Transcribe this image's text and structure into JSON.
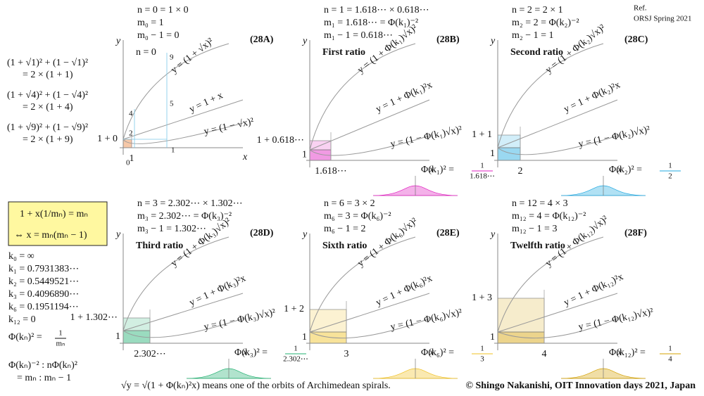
{
  "ref": [
    "Ref.",
    "ORSJ Spring  2021"
  ],
  "panels": [
    {
      "id": "(28A)",
      "color": "#e89a30",
      "header": [
        "n = 0 = 1 × 0",
        "m₀ = 1",
        "m₀ − 1 = 0"
      ],
      "ratio": "n = 0",
      "curves": [
        "y = (1 + √x)²",
        "y = 1 + x",
        "y = (1 − √x)²"
      ],
      "axis_y": "y",
      "axis_x": "x",
      "y_value": "1 + 0",
      "x_value": "1",
      "grid_labels": [
        "0",
        "1",
        "2",
        "4",
        "5",
        "9"
      ]
    },
    {
      "id": "(28B)",
      "color": "#e020c0",
      "header": [
        "n = 1 = 1.618⋯ × 0.618⋯",
        "m₁ = 1.618⋯ = Φ(k₁)⁻²",
        "m₁ − 1 = 0.618⋯"
      ],
      "ratio": "First ratio",
      "curves": [
        "y = (1 + Φ(k₁)√x)²",
        "y = 1 + Φ(k₁)²x",
        "y = (1 − Φ(k₁)√x)²"
      ],
      "axis_y": "y",
      "axis_x": "x",
      "y_value": "1 + 0.618⋯",
      "one": "1",
      "x_value": "1.618⋯",
      "phi": [
        "Φ(k₁)² =",
        "1",
        "1.618⋯"
      ]
    },
    {
      "id": "(28C)",
      "color": "#20a8e0",
      "header": [
        "n = 2 = 2 × 1",
        "m₂ = 2 = Φ(k₂)⁻²",
        "m₂ − 1 = 1"
      ],
      "ratio": "Second ratio",
      "curves": [
        "y = (1 + Φ(k₂)√x)²",
        "y = 1 + Φ(k₂)²x",
        "y = (1 − Φ(k₂)√x)²"
      ],
      "axis_y": "y",
      "axis_x": "x",
      "y_value": "1 + 1",
      "one": "1",
      "x_value": "2",
      "phi": [
        "Φ(k₂)² =",
        "1",
        "2"
      ]
    },
    {
      "id": "(28D)",
      "color": "#20b070",
      "header": [
        "n = 3 = 2.302⋯ × 1.302⋯",
        "m₃ = 2.302⋯ = Φ(k₃)⁻²",
        "m₃ − 1 = 1.302⋯"
      ],
      "ratio": "Third ratio",
      "curves": [
        "y = (1 + Φ(k₃)√x)²",
        "y = 1 + Φ(k₃)²x",
        "y = (1 − Φ(k₃)√x)²"
      ],
      "axis_y": "y",
      "axis_x": "x",
      "y_value": "1 + 1.302⋯",
      "one": "1",
      "x_value": "2.302⋯",
      "phi": [
        "Φ(k₃)² =",
        "1",
        "2.302⋯"
      ]
    },
    {
      "id": "(28E)",
      "color": "#f0c020",
      "header": [
        "n = 6 = 3 × 2",
        "m₆ = 3 = Φ(k₆)⁻²",
        "m₆ − 1 = 2"
      ],
      "ratio": "Sixth ratio",
      "curves": [
        "y = (1 + Φ(k₆)√x)²",
        "y = 1 + Φ(k₆)²x",
        "y = (1 − Φ(k₆)√x)²"
      ],
      "axis_y": "y",
      "axis_x": "x",
      "y_value": "1 + 2",
      "one": "1",
      "x_value": "3",
      "phi": [
        "Φ(k₆)² =",
        "1",
        "3"
      ]
    },
    {
      "id": "(28F)",
      "color": "#d4a000",
      "header": [
        "n = 12 = 4 × 3",
        "m₁₂ = 4 = Φ(k₁₂)⁻²",
        "m₁₂ − 1 = 3"
      ],
      "ratio": "Twelfth ratio",
      "curves": [
        "y = (1 + Φ(k₁₂)√x)²",
        "y = 1 + Φ(k₁₂)²x",
        "y = (1 − Φ(k₁₂)√x)²"
      ],
      "axis_y": "y",
      "axis_x": "x",
      "y_value": "1 + 3",
      "one": "1",
      "x_value": "4",
      "phi": [
        "Φ(k₁₂)² =",
        "1",
        "4"
      ]
    }
  ],
  "left": {
    "identities": [
      "(1 + √1)² + (1 − √1)²",
      "= 2 × (1 + 1)",
      "(1 + √4)² + (1 − √4)²",
      "= 2 × (1 + 4)",
      "(1 + √9)² + (1 − √9)²",
      "= 2 × (1 + 9)"
    ],
    "box": [
      "1 + x(1/mₙ) = mₙ",
      "⇔ x = mₙ(mₙ − 1)"
    ],
    "k_values": [
      {
        "text": "k₀ = ∞",
        "color": "#f0a080"
      },
      {
        "text": "k₁ = 0.7931383⋯",
        "color": "#e020c0"
      },
      {
        "text": "k₂ = 0.5449521⋯",
        "color": "#20a8e0"
      },
      {
        "text": "k₃ = 0.4096890⋯",
        "color": "#20b070"
      },
      {
        "text": "k₆ = 0.1951194⋯",
        "color": "#f0c020"
      },
      {
        "text": "k₁₂ = 0",
        "color": "#f0a080"
      }
    ],
    "phi_def": [
      "Φ(kₙ)² =",
      "1",
      "mₙ"
    ],
    "ratio": [
      "Φ(kₙ)⁻² : nΦ(kₙ)²",
      "= mₙ : mₙ − 1"
    ]
  },
  "footer": {
    "spiral": "√y = √(1 + Φ(kₙ)²x) means one of the orbits of Archimedean  spirals.",
    "copyright": "© Shingo Nakanishi, OIT Innovation  days 2021, Japan"
  }
}
